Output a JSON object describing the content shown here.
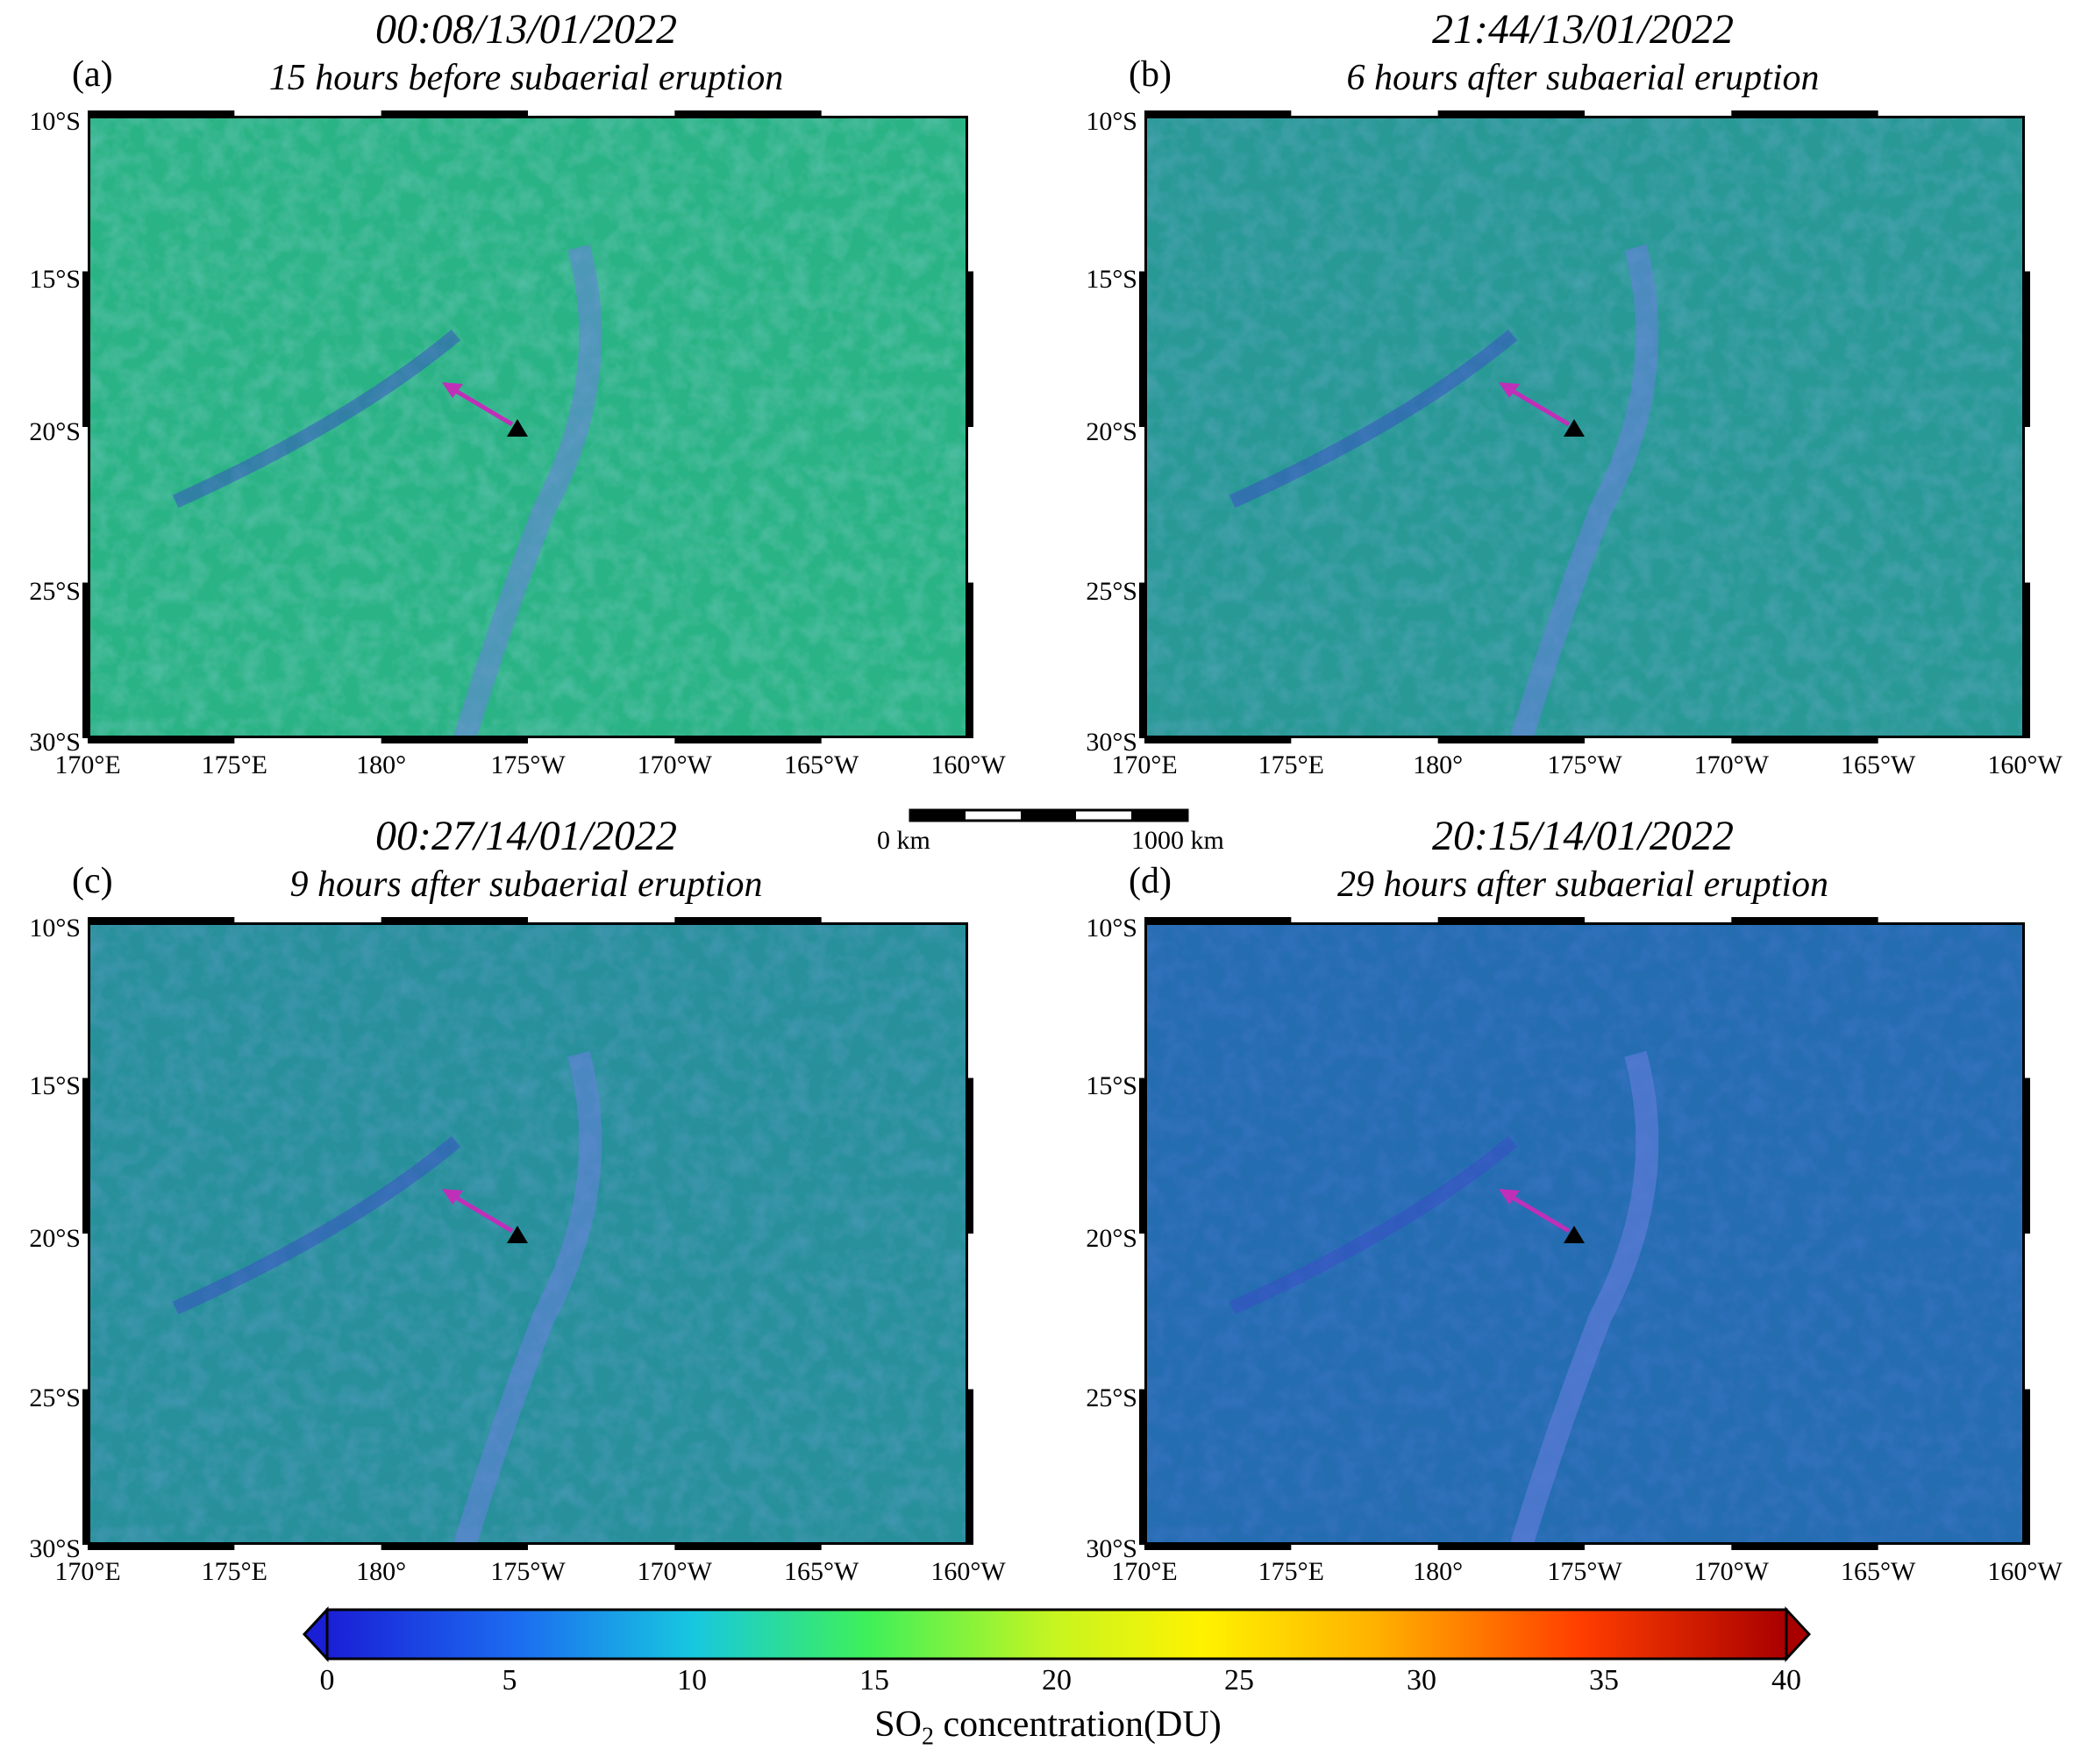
{
  "panels": [
    {
      "letter": "(a)",
      "date": "00:08/13/01/2022",
      "subtitle": "15 hours before subaerial eruption"
    },
    {
      "letter": "(b)",
      "date": "21:44/13/01/2022",
      "subtitle": "6 hours after subaerial eruption"
    },
    {
      "letter": "(c)",
      "date": "00:27/14/01/2022",
      "subtitle": "9 hours after subaerial eruption"
    },
    {
      "letter": "(d)",
      "date": "20:15/14/01/2022",
      "subtitle": "29 hours after subaerial eruption"
    }
  ],
  "lat_labels": [
    "10°S",
    "15°S",
    "20°S",
    "25°S",
    "30°S"
  ],
  "lon_labels": [
    "170°E",
    "175°E",
    "180°",
    "175°W",
    "170°W",
    "165°W",
    "160°W"
  ],
  "scale": {
    "start": "0 km",
    "end": "1000 km"
  },
  "colorbar": {
    "ticks": [
      "0",
      "5",
      "10",
      "15",
      "20",
      "25",
      "30",
      "35",
      "40"
    ],
    "title_main": "SO",
    "title_sub": "2",
    "title_rest": " concentration(DU)"
  },
  "colors": {
    "low": "#1f2fd8",
    "mid": "#2ee06a",
    "high": "#f4f21a",
    "max": "#b00000",
    "volcano": "#000000",
    "arrow": "#c02fb8"
  }
}
